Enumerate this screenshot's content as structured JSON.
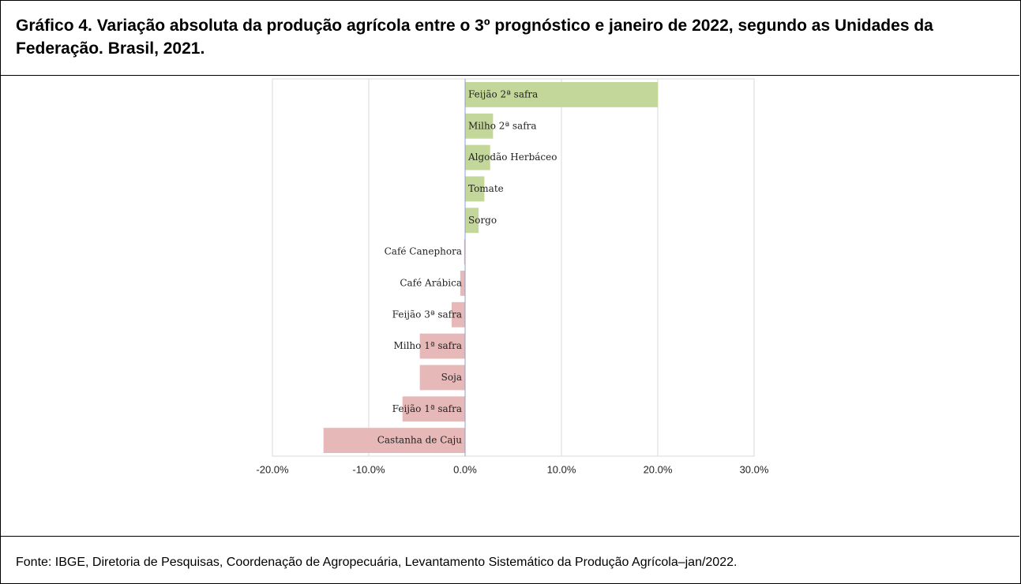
{
  "chart_data": {
    "type": "bar",
    "orientation": "horizontal",
    "title": "Gráfico 4. Variação absoluta da produção agrícola entre o 3º prognóstico e janeiro de 2022, segundo as Unidades da Federação. Brasil, 2021.",
    "source": "Fonte: IBGE, Diretoria de Pesquisas, Coordenação de Agropecuária, Levantamento Sistemático da Produção Agrícola–jan/2022.",
    "categories": [
      "Feijão 2ª safra",
      "Milho 2ª safra",
      "Algodão Herbáceo",
      "Tomate",
      "Sorgo",
      "Café Canephora",
      "Café Arábica",
      "Feijão 3ª safra",
      "Milho 1ª safra",
      "Soja",
      "Feijão 1ª safra",
      "Castanha de Caju"
    ],
    "values": [
      20.0,
      2.9,
      2.6,
      2.0,
      1.4,
      -0.1,
      -0.5,
      -1.4,
      -4.7,
      -4.7,
      -6.5,
      -14.7
    ],
    "colors": [
      "#c4d79b",
      "#c4d79b",
      "#c4d79b",
      "#c4d79b",
      "#c4d79b",
      "#e6b9b8",
      "#e6b9b8",
      "#e6b9b8",
      "#e6b9b8",
      "#e6b9b8",
      "#e6b9b8",
      "#e6b9b8"
    ],
    "xlim": [
      -20,
      30
    ],
    "xticks": [
      {
        "value": -20,
        "label": "-20.0%"
      },
      {
        "value": -10,
        "label": "-10.0%"
      },
      {
        "value": 0,
        "label": "0.0%"
      },
      {
        "value": 10,
        "label": "10.0%"
      },
      {
        "value": 20,
        "label": "20.0%"
      },
      {
        "value": 30,
        "label": "30.0%"
      }
    ],
    "grid": true
  }
}
